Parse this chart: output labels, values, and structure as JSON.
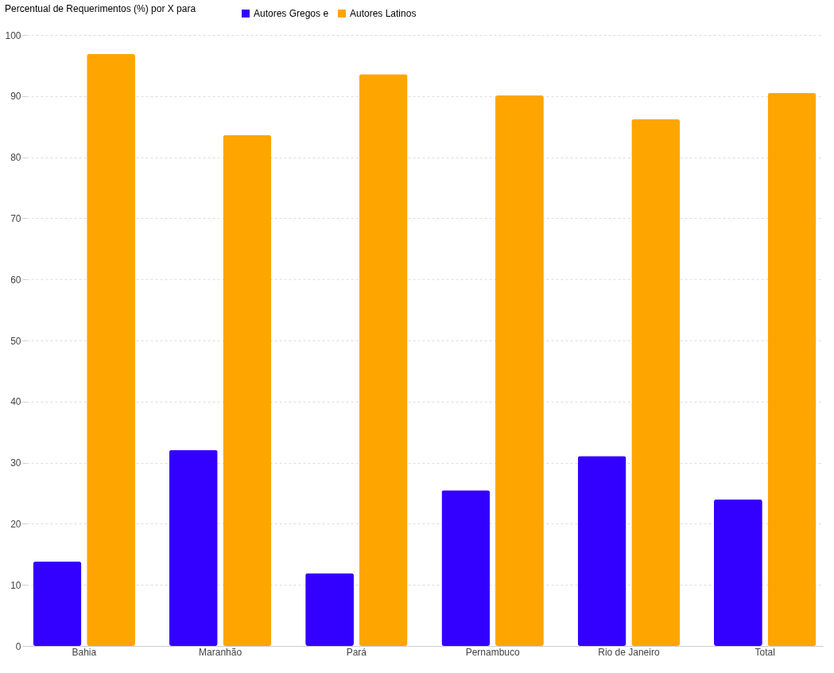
{
  "chart_data": {
    "type": "bar",
    "title": "Percentual de Requerimentos (%) por X para",
    "categories": [
      "Bahia",
      "Maranhão",
      "Pará",
      "Pernambuco",
      "Rio de Janeiro",
      "Total"
    ],
    "series": [
      {
        "name": "Autores Gregos e",
        "color": "#3300ff",
        "values": [
          13.8,
          32.1,
          11.9,
          25.5,
          31.1,
          24.0
        ]
      },
      {
        "name": "Autores Latinos",
        "color": "#ffa500",
        "values": [
          96.9,
          83.6,
          93.6,
          90.1,
          86.2,
          90.5
        ]
      }
    ],
    "ylim": [
      0,
      100
    ],
    "yticks": [
      0,
      10,
      20,
      30,
      40,
      50,
      60,
      70,
      80,
      90,
      100
    ],
    "grid": "y",
    "legend": "top left"
  }
}
